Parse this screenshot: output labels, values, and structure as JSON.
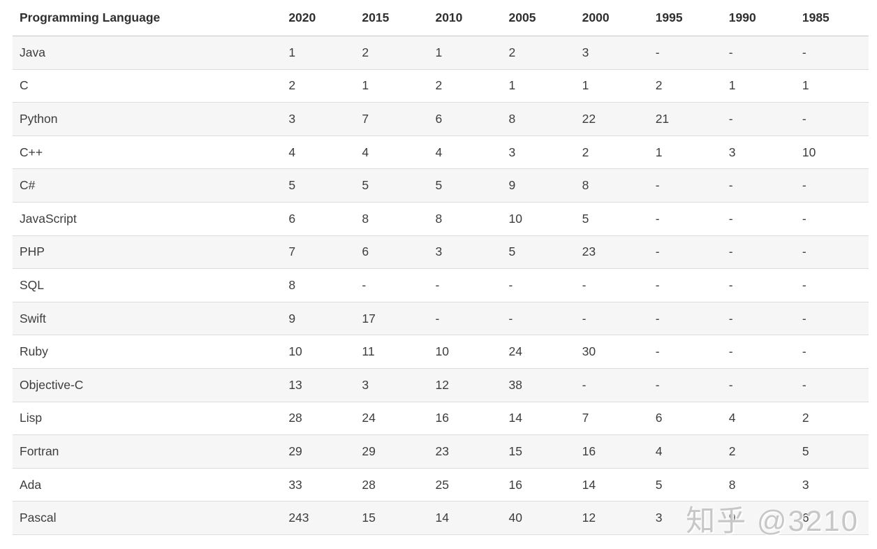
{
  "chart_data": {
    "type": "table",
    "columns": [
      "Programming Language",
      "2020",
      "2015",
      "2010",
      "2005",
      "2000",
      "1995",
      "1990",
      "1985"
    ],
    "rows": [
      {
        "language": "Java",
        "values": [
          "1",
          "2",
          "1",
          "2",
          "3",
          "-",
          "-",
          "-"
        ]
      },
      {
        "language": "C",
        "values": [
          "2",
          "1",
          "2",
          "1",
          "1",
          "2",
          "1",
          "1"
        ]
      },
      {
        "language": "Python",
        "values": [
          "3",
          "7",
          "6",
          "8",
          "22",
          "21",
          "-",
          "-"
        ]
      },
      {
        "language": "C++",
        "values": [
          "4",
          "4",
          "4",
          "3",
          "2",
          "1",
          "3",
          "10"
        ]
      },
      {
        "language": "C#",
        "values": [
          "5",
          "5",
          "5",
          "9",
          "8",
          "-",
          "-",
          "-"
        ]
      },
      {
        "language": "JavaScript",
        "values": [
          "6",
          "8",
          "8",
          "10",
          "5",
          "-",
          "-",
          "-"
        ]
      },
      {
        "language": "PHP",
        "values": [
          "7",
          "6",
          "3",
          "5",
          "23",
          "-",
          "-",
          "-"
        ]
      },
      {
        "language": "SQL",
        "values": [
          "8",
          "-",
          "-",
          "-",
          "-",
          "-",
          "-",
          "-"
        ]
      },
      {
        "language": "Swift",
        "values": [
          "9",
          "17",
          "-",
          "-",
          "-",
          "-",
          "-",
          "-"
        ]
      },
      {
        "language": "Ruby",
        "values": [
          "10",
          "11",
          "10",
          "24",
          "30",
          "-",
          "-",
          "-"
        ]
      },
      {
        "language": "Objective-C",
        "values": [
          "13",
          "3",
          "12",
          "38",
          "-",
          "-",
          "-",
          "-"
        ]
      },
      {
        "language": "Lisp",
        "values": [
          "28",
          "24",
          "16",
          "14",
          "7",
          "6",
          "4",
          "2"
        ]
      },
      {
        "language": "Fortran",
        "values": [
          "29",
          "29",
          "23",
          "15",
          "16",
          "4",
          "2",
          "5"
        ]
      },
      {
        "language": "Ada",
        "values": [
          "33",
          "28",
          "25",
          "16",
          "14",
          "5",
          "8",
          "3"
        ]
      },
      {
        "language": "Pascal",
        "values": [
          "243",
          "15",
          "14",
          "40",
          "12",
          "3",
          "9",
          "6"
        ]
      }
    ]
  },
  "watermark": {
    "text": "知乎 @3210"
  },
  "colors": {
    "row_alt_bg": "#f6f6f6",
    "row_divider": "#dcdcdc",
    "header_divider": "#c9c9c9",
    "header_text": "#2f2f2f",
    "cell_text": "#3d3d3d",
    "watermark_text": "#c7c7c7"
  }
}
